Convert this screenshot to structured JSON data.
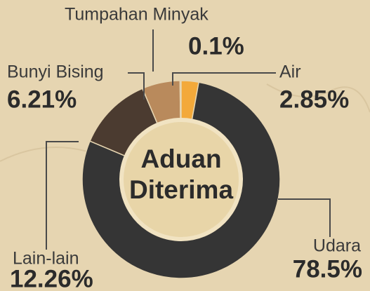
{
  "chart_data": {
    "type": "pie",
    "donut": true,
    "center_label": "Aduan Diterima",
    "categories": [
      "Air",
      "Udara",
      "Lain-lain",
      "Bunyi Bising",
      "Tumpahan Minyak"
    ],
    "values": [
      2.85,
      78.5,
      12.26,
      6.21,
      0.1
    ],
    "value_labels": [
      "2.85%",
      "78.5%",
      "12.26%",
      "6.21%",
      "0.1%"
    ],
    "colors": [
      "#f3a93a",
      "#353535",
      "#4b3b30",
      "#b98a5c",
      "#c9b99b"
    ]
  }
}
